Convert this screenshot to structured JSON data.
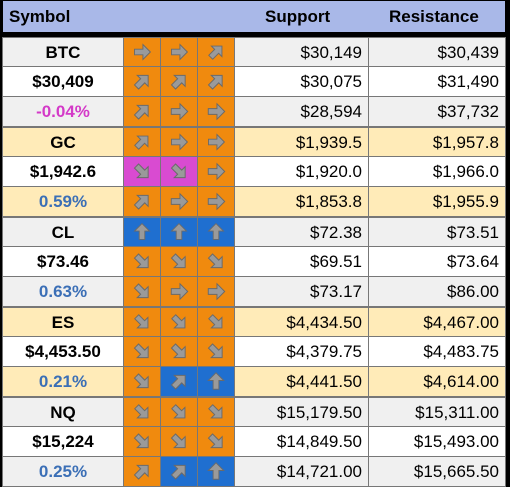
{
  "colors": {
    "header_bg": "#a9b8e8",
    "alt_row_bg_white": "#ffffff",
    "alt_row_bg_cream": "#ffebb8",
    "alt_row_bg_gray": "#f0f0f0",
    "arrow_orange": "#f08a0e",
    "arrow_blue": "#1f6fd0",
    "arrow_magenta": "#d94bd1",
    "neg_text": "#d43ac8",
    "pos_text": "#3b6fb6"
  },
  "header": {
    "symbol": "Symbol",
    "support": "Support",
    "resistance": "Resistance"
  },
  "groups": [
    {
      "symbol": "BTC",
      "price": "$30,409",
      "change": "-0.04%",
      "change_dir": "neg",
      "bg": "gray",
      "rows": [
        {
          "arrows": [
            {
              "dir": "right",
              "color": "orange"
            },
            {
              "dir": "right",
              "color": "orange"
            },
            {
              "dir": "up-right",
              "color": "orange"
            }
          ],
          "support": "$30,149",
          "resistance": "$30,439"
        },
        {
          "arrows": [
            {
              "dir": "up-right",
              "color": "orange"
            },
            {
              "dir": "up-right",
              "color": "orange"
            },
            {
              "dir": "up-right",
              "color": "orange"
            }
          ],
          "support": "$30,075",
          "resistance": "$31,490"
        },
        {
          "arrows": [
            {
              "dir": "up-right",
              "color": "orange"
            },
            {
              "dir": "right",
              "color": "orange"
            },
            {
              "dir": "right",
              "color": "orange"
            }
          ],
          "support": "$28,594",
          "resistance": "$37,732"
        }
      ]
    },
    {
      "symbol": "GC",
      "price": "$1,942.6",
      "change": "0.59%",
      "change_dir": "pos",
      "bg": "cream",
      "rows": [
        {
          "arrows": [
            {
              "dir": "up-right",
              "color": "orange"
            },
            {
              "dir": "right",
              "color": "orange"
            },
            {
              "dir": "right",
              "color": "orange"
            }
          ],
          "support": "$1,939.5",
          "resistance": "$1,957.8"
        },
        {
          "arrows": [
            {
              "dir": "down-right",
              "color": "magenta"
            },
            {
              "dir": "down-right",
              "color": "magenta"
            },
            {
              "dir": "right",
              "color": "orange"
            }
          ],
          "support": "$1,920.0",
          "resistance": "$1,966.0"
        },
        {
          "arrows": [
            {
              "dir": "up-right",
              "color": "orange"
            },
            {
              "dir": "right",
              "color": "orange"
            },
            {
              "dir": "right",
              "color": "orange"
            }
          ],
          "support": "$1,853.8",
          "resistance": "$1,955.9"
        }
      ]
    },
    {
      "symbol": "CL",
      "price": "$73.46",
      "change": "0.63%",
      "change_dir": "pos",
      "bg": "gray",
      "rows": [
        {
          "arrows": [
            {
              "dir": "up",
              "color": "blue"
            },
            {
              "dir": "up",
              "color": "blue"
            },
            {
              "dir": "up",
              "color": "blue"
            }
          ],
          "support": "$72.38",
          "resistance": "$73.51"
        },
        {
          "arrows": [
            {
              "dir": "down-right",
              "color": "orange"
            },
            {
              "dir": "down-right",
              "color": "orange"
            },
            {
              "dir": "down-right",
              "color": "orange"
            }
          ],
          "support": "$69.51",
          "resistance": "$73.64"
        },
        {
          "arrows": [
            {
              "dir": "down-right",
              "color": "orange"
            },
            {
              "dir": "right",
              "color": "orange"
            },
            {
              "dir": "right",
              "color": "orange"
            }
          ],
          "support": "$73.17",
          "resistance": "$86.00"
        }
      ]
    },
    {
      "symbol": "ES",
      "price": "$4,453.50",
      "change": "0.21%",
      "change_dir": "pos",
      "bg": "cream",
      "rows": [
        {
          "arrows": [
            {
              "dir": "down-right",
              "color": "orange"
            },
            {
              "dir": "down-right",
              "color": "orange"
            },
            {
              "dir": "down-right",
              "color": "orange"
            }
          ],
          "support": "$4,434.50",
          "resistance": "$4,467.00"
        },
        {
          "arrows": [
            {
              "dir": "down-right",
              "color": "orange"
            },
            {
              "dir": "down-right",
              "color": "orange"
            },
            {
              "dir": "down-right",
              "color": "orange"
            }
          ],
          "support": "$4,379.75",
          "resistance": "$4,483.75"
        },
        {
          "arrows": [
            {
              "dir": "down-right",
              "color": "orange"
            },
            {
              "dir": "up-right",
              "color": "blue"
            },
            {
              "dir": "up",
              "color": "blue"
            }
          ],
          "support": "$4,441.50",
          "resistance": "$4,614.00"
        }
      ]
    },
    {
      "symbol": "NQ",
      "price": "$15,224",
      "change": "0.25%",
      "change_dir": "pos",
      "bg": "gray",
      "rows": [
        {
          "arrows": [
            {
              "dir": "down-right",
              "color": "orange"
            },
            {
              "dir": "down-right",
              "color": "orange"
            },
            {
              "dir": "down-right",
              "color": "orange"
            }
          ],
          "support": "$15,179.50",
          "resistance": "$15,311.00"
        },
        {
          "arrows": [
            {
              "dir": "down-right",
              "color": "orange"
            },
            {
              "dir": "down-right",
              "color": "orange"
            },
            {
              "dir": "down-right",
              "color": "orange"
            }
          ],
          "support": "$14,849.50",
          "resistance": "$15,493.00"
        },
        {
          "arrows": [
            {
              "dir": "up-right",
              "color": "orange"
            },
            {
              "dir": "up-right",
              "color": "blue"
            },
            {
              "dir": "up",
              "color": "blue"
            }
          ],
          "support": "$14,721.00",
          "resistance": "$15,665.50"
        }
      ]
    }
  ]
}
